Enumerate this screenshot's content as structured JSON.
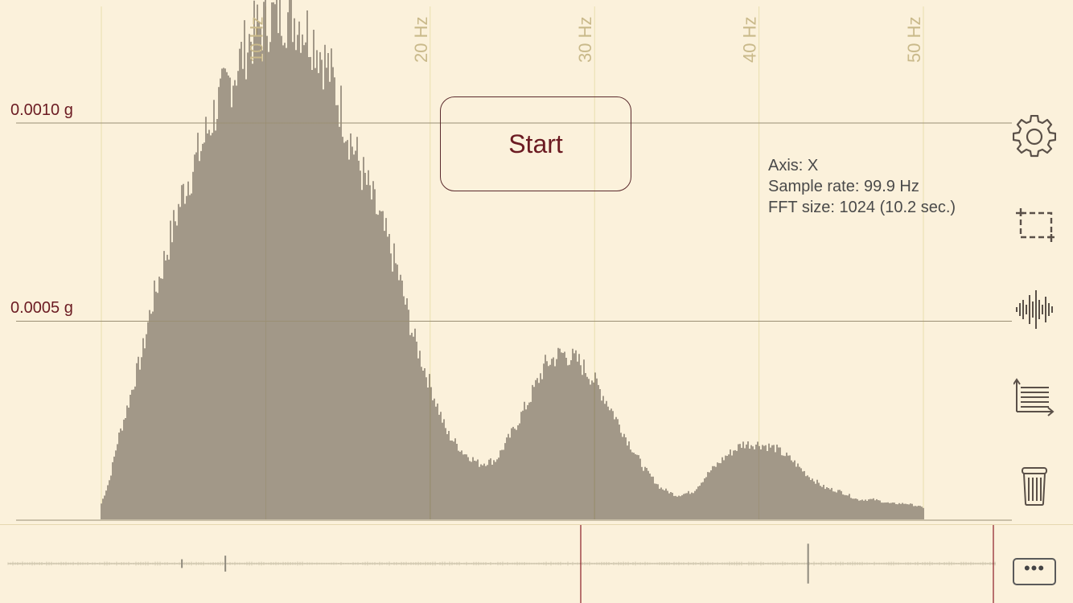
{
  "y_axis_labels": [
    "0.0010 g",
    "0.0005 g"
  ],
  "freq_labels": [
    "10 Hz",
    "20 Hz",
    "30 Hz",
    "40 Hz",
    "50 Hz"
  ],
  "start_button": {
    "label": "Start"
  },
  "info": {
    "axis": "Axis: X",
    "sample_rate": "Sample rate: 99.9 Hz",
    "fft_size": "FFT size: 1024 (10.2 sec.)"
  },
  "toolbar": {
    "settings_icon": "gear-icon",
    "selection_icon": "crop-selection-icon",
    "waveform_icon": "waveform-icon",
    "list_icon": "list-axis-icon",
    "trash_icon": "trash-icon",
    "more_label": "•••"
  },
  "colors": {
    "background": "#fbf1db",
    "bars": "#5a4f45",
    "label": "#6b1b22",
    "grid": "#e9dfae",
    "marker": "#8b1c24"
  },
  "chart_data": {
    "type": "bar",
    "x_unit": "Hz",
    "y_unit": "g",
    "xlim": [
      0,
      50
    ],
    "ylim": [
      0,
      0.0013
    ],
    "ytick_values": [
      0.001,
      0.0005
    ],
    "xtick_values": [
      10,
      20,
      30,
      40,
      50
    ],
    "grid": true,
    "envelope": [
      [
        0.0,
        4e-05
      ],
      [
        0.5,
        0.0001
      ],
      [
        1.0,
        0.0002
      ],
      [
        1.5,
        0.00027
      ],
      [
        2.0,
        0.00035
      ],
      [
        2.5,
        0.00042
      ],
      [
        3.0,
        0.00053
      ],
      [
        4.0,
        0.00068
      ],
      [
        5.0,
        0.00083
      ],
      [
        6.0,
        0.00093
      ],
      [
        7.0,
        0.00104
      ],
      [
        8.0,
        0.00112
      ],
      [
        9.0,
        0.00121
      ],
      [
        10.0,
        0.00126
      ],
      [
        11.0,
        0.00128
      ],
      [
        12.0,
        0.00126
      ],
      [
        13.0,
        0.00121
      ],
      [
        14.0,
        0.00112
      ],
      [
        15.0,
        0.00098
      ],
      [
        16.0,
        0.00086
      ],
      [
        17.0,
        0.00075
      ],
      [
        18.0,
        0.00063
      ],
      [
        19.0,
        0.00046
      ],
      [
        20.0,
        0.00034
      ],
      [
        21.0,
        0.00022
      ],
      [
        22.0,
        0.00017
      ],
      [
        23.0,
        0.00014
      ],
      [
        24.0,
        0.00015
      ],
      [
        25.0,
        0.00022
      ],
      [
        26.0,
        0.0003
      ],
      [
        27.0,
        0.00039
      ],
      [
        28.0,
        0.00042
      ],
      [
        29.0,
        0.0004
      ],
      [
        30.0,
        0.00035
      ],
      [
        31.0,
        0.00028
      ],
      [
        32.0,
        0.0002
      ],
      [
        33.0,
        0.00013
      ],
      [
        34.0,
        8e-05
      ],
      [
        35.0,
        6e-05
      ],
      [
        36.0,
        7e-05
      ],
      [
        37.0,
        0.00012
      ],
      [
        38.0,
        0.00016
      ],
      [
        39.0,
        0.00019
      ],
      [
        40.0,
        0.00019
      ],
      [
        41.0,
        0.00018
      ],
      [
        42.0,
        0.00015
      ],
      [
        43.0,
        0.00011
      ],
      [
        44.0,
        8e-05
      ],
      [
        45.0,
        7e-05
      ],
      [
        46.0,
        5e-05
      ],
      [
        47.0,
        5e-05
      ],
      [
        48.0,
        4e-05
      ],
      [
        49.0,
        4e-05
      ],
      [
        50.0,
        3e-05
      ]
    ]
  },
  "waveform": {
    "window_start_fraction": 0.59,
    "window_end_fraction": 1.0,
    "spikes": [
      {
        "position_fraction": 0.176,
        "amplitude": 0.12
      },
      {
        "position_fraction": 0.22,
        "amplitude": 0.22
      },
      {
        "position_fraction": 0.81,
        "amplitude": 0.55
      }
    ]
  }
}
